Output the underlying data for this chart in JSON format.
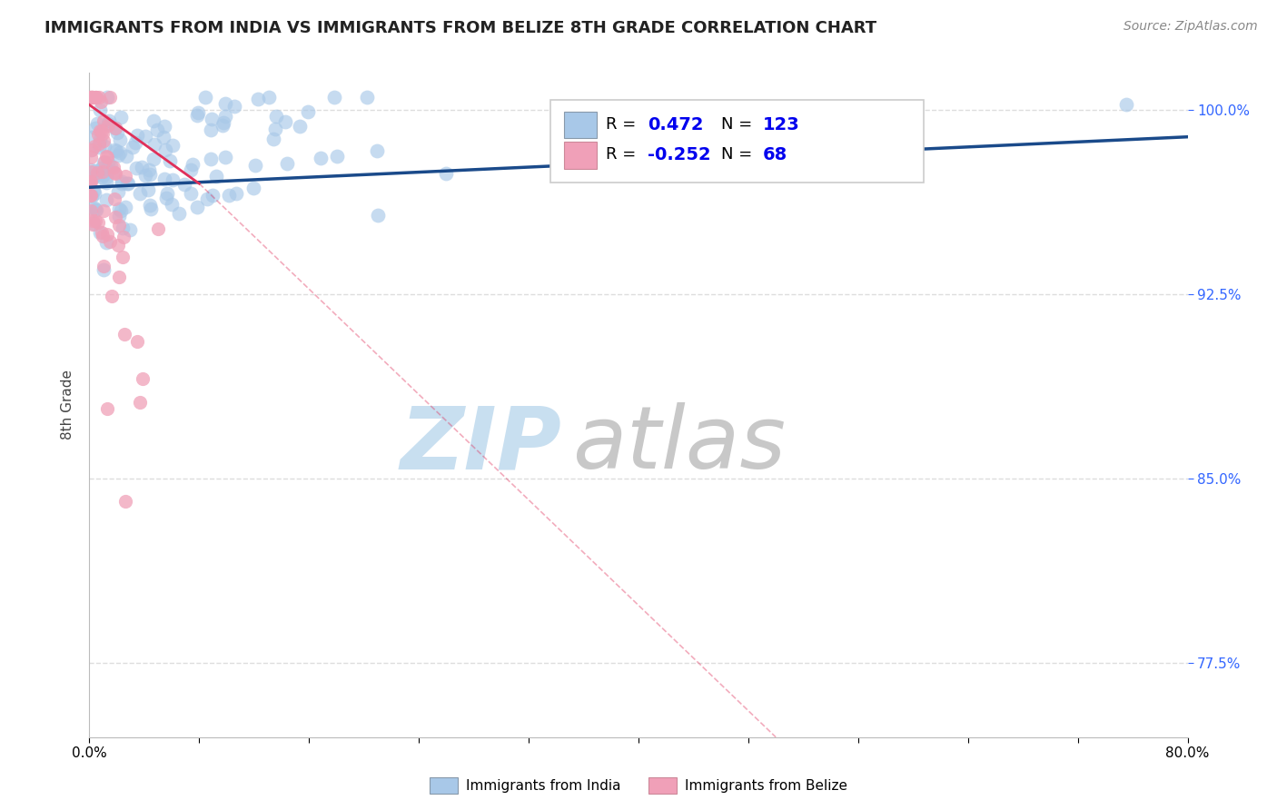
{
  "title": "IMMIGRANTS FROM INDIA VS IMMIGRANTS FROM BELIZE 8TH GRADE CORRELATION CHART",
  "source": "Source: ZipAtlas.com",
  "ylabel": "8th Grade",
  "legend_india": "Immigrants from India",
  "legend_belize": "Immigrants from Belize",
  "R_india": 0.472,
  "N_india": 123,
  "R_belize": -0.252,
  "N_belize": 68,
  "xlim": [
    0.0,
    0.8
  ],
  "ylim": [
    0.745,
    1.015
  ],
  "xticks": [
    0.0,
    0.08,
    0.16,
    0.24,
    0.32,
    0.4,
    0.48,
    0.56,
    0.64,
    0.72,
    0.8
  ],
  "xticklabels_show": {
    "0.0": "0.0%",
    "0.80": "80.0%"
  },
  "yticks": [
    0.775,
    0.85,
    0.925,
    1.0
  ],
  "yticklabels": [
    "77.5%",
    "85.0%",
    "92.5%",
    "100.0%"
  ],
  "color_india": "#a8c8e8",
  "color_india_line": "#1a4a8a",
  "color_belize": "#f0a0b8",
  "color_belize_line": "#e0305a",
  "grid_color": "#dddddd",
  "title_color": "#222222",
  "title_fontsize": 13,
  "axis_label_color": "#444444",
  "legend_text_color": "#0000ee",
  "right_tick_color": "#3366ff",
  "india_seed": 42,
  "belize_seed": 17,
  "watermark_zip_color": "#c8dff0",
  "watermark_atlas_color": "#c8c8c8"
}
